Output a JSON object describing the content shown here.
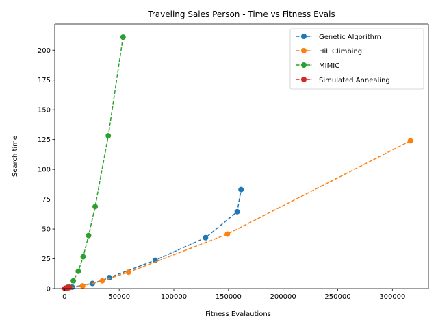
{
  "chart_data": {
    "type": "line",
    "title": "Traveling Sales Person - Time vs Fitness Evals",
    "xlabel": "Fitness Evalautions",
    "ylabel": "Search time",
    "xlim": [
      -9000,
      333000
    ],
    "ylim": [
      0,
      222
    ],
    "xticks": [
      0,
      50000,
      100000,
      150000,
      200000,
      250000,
      300000
    ],
    "yticks": [
      0,
      25,
      50,
      75,
      100,
      125,
      150,
      175,
      200
    ],
    "grid": false,
    "legend_position": "top-right",
    "line_style": "dashed",
    "marker": "circle",
    "series": [
      {
        "name": "Genetic Algorithm",
        "color": "#1f77b4",
        "x": [
          1000,
          3500,
          7000,
          25500,
          41000,
          83000,
          129000,
          158000,
          161500
        ],
        "y": [
          0.3,
          0.8,
          1.2,
          4.3,
          9.2,
          23.8,
          42.7,
          64.5,
          83.0
        ]
      },
      {
        "name": "Hill Climbing",
        "color": "#ff7f0e",
        "x": [
          500,
          2000,
          4000,
          16500,
          34500,
          58500,
          149000,
          316500
        ],
        "y": [
          0.1,
          0.3,
          0.6,
          2.2,
          6.5,
          13.7,
          45.7,
          124.0
        ]
      },
      {
        "name": "MIMIC",
        "color": "#2ca02c",
        "x": [
          3000,
          8000,
          12500,
          17000,
          22000,
          28000,
          40000,
          53500
        ],
        "y": [
          1.2,
          6.5,
          14.5,
          26.7,
          44.5,
          68.8,
          128.2,
          211.0
        ]
      },
      {
        "name": "Simulated Annealing",
        "color": "#d62728",
        "x": [
          200,
          800,
          1500,
          2500,
          3500,
          4500
        ],
        "y": [
          0.05,
          0.2,
          0.4,
          0.6,
          0.8,
          1.0
        ]
      }
    ]
  }
}
